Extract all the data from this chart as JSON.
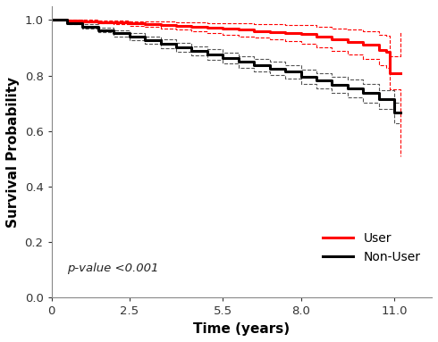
{
  "xlabel": "Time (years)",
  "ylabel": "Survival Probability",
  "xlim": [
    0,
    12.2
  ],
  "ylim": [
    0.0,
    1.05
  ],
  "xticks": [
    0,
    2.5,
    5.5,
    8.0,
    11.0
  ],
  "yticks": [
    0.0,
    0.2,
    0.4,
    0.6,
    0.8,
    1.0
  ],
  "pvalue_text": "p-value <0.001",
  "legend_labels": [
    "User",
    "Non-User"
  ],
  "red_color": "#FF0000",
  "black_color": "#000000",
  "background_color": "#FFFFFF",
  "user_t": [
    0,
    0.5,
    1.0,
    1.5,
    2.0,
    2.5,
    3.0,
    3.5,
    4.0,
    4.5,
    5.0,
    5.5,
    6.0,
    6.5,
    7.0,
    7.5,
    8.0,
    8.5,
    9.0,
    9.5,
    10.0,
    10.5,
    10.75,
    10.85,
    11.0,
    11.2
  ],
  "user_s": [
    1.0,
    0.998,
    0.996,
    0.993,
    0.991,
    0.988,
    0.985,
    0.982,
    0.979,
    0.976,
    0.972,
    0.969,
    0.965,
    0.961,
    0.957,
    0.953,
    0.949,
    0.94,
    0.93,
    0.92,
    0.91,
    0.893,
    0.885,
    0.81,
    0.81,
    0.81
  ],
  "user_ci_lo": [
    1.0,
    0.996,
    0.992,
    0.988,
    0.984,
    0.98,
    0.975,
    0.97,
    0.965,
    0.96,
    0.954,
    0.948,
    0.942,
    0.936,
    0.93,
    0.923,
    0.916,
    0.903,
    0.889,
    0.875,
    0.86,
    0.838,
    0.827,
    0.75,
    0.75,
    0.51
  ],
  "user_ci_hi": [
    1.0,
    1.0,
    1.0,
    0.998,
    0.998,
    0.996,
    0.995,
    0.994,
    0.993,
    0.992,
    0.99,
    0.99,
    0.988,
    0.986,
    0.984,
    0.983,
    0.982,
    0.977,
    0.971,
    0.965,
    0.96,
    0.948,
    0.943,
    0.87,
    0.87,
    0.96
  ],
  "nonuser_t": [
    0,
    0.5,
    1.0,
    1.5,
    2.0,
    2.5,
    3.0,
    3.5,
    4.0,
    4.5,
    5.0,
    5.5,
    6.0,
    6.5,
    7.0,
    7.5,
    8.0,
    8.5,
    9.0,
    9.5,
    10.0,
    10.5,
    11.0,
    11.2
  ],
  "nonuser_s": [
    1.0,
    0.988,
    0.976,
    0.964,
    0.952,
    0.94,
    0.928,
    0.915,
    0.902,
    0.889,
    0.876,
    0.863,
    0.85,
    0.838,
    0.826,
    0.814,
    0.796,
    0.782,
    0.768,
    0.754,
    0.737,
    0.714,
    0.666,
    0.666
  ],
  "nonuser_ci_lo": [
    1.0,
    0.984,
    0.968,
    0.955,
    0.941,
    0.928,
    0.914,
    0.9,
    0.886,
    0.872,
    0.857,
    0.843,
    0.829,
    0.816,
    0.803,
    0.79,
    0.771,
    0.755,
    0.739,
    0.723,
    0.704,
    0.679,
    0.628,
    0.628
  ],
  "nonuser_ci_hi": [
    1.0,
    0.992,
    0.984,
    0.973,
    0.963,
    0.952,
    0.942,
    0.93,
    0.918,
    0.906,
    0.895,
    0.883,
    0.871,
    0.86,
    0.849,
    0.838,
    0.821,
    0.809,
    0.797,
    0.785,
    0.77,
    0.749,
    0.704,
    0.704
  ]
}
